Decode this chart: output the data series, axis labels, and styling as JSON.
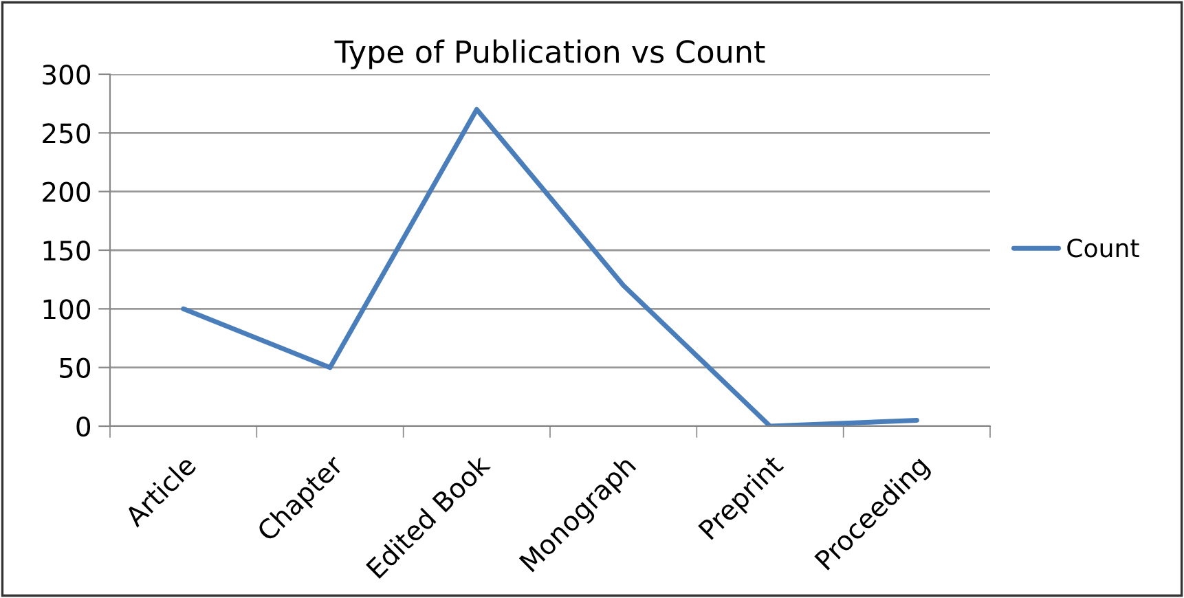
{
  "chart_data": {
    "type": "line",
    "title": "Type of Publication vs Count",
    "categories": [
      "Article",
      "Chapter",
      "Edited Book",
      "Monograph",
      "Preprint",
      "Proceeding"
    ],
    "series": [
      {
        "name": "Count",
        "color": "#4a7ebb",
        "values": [
          100,
          50,
          270,
          120,
          0,
          5
        ]
      }
    ],
    "ylim": [
      0,
      300
    ],
    "yticks": [
      0,
      50,
      100,
      150,
      200,
      250,
      300
    ],
    "grid": "y",
    "legend": "right",
    "marker": "none",
    "line_style": "solid"
  }
}
